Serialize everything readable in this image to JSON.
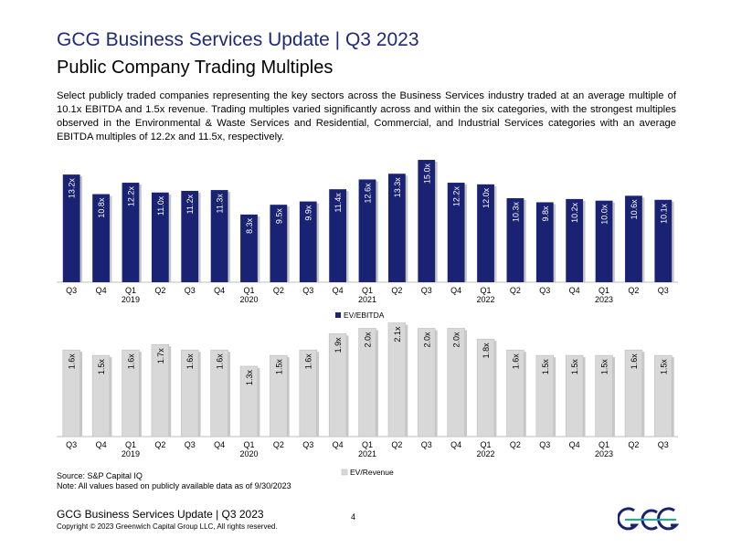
{
  "header": {
    "title": "GCG Business Services Update",
    "separator": "|",
    "period": "Q3 2023"
  },
  "subtitle": "Public Company Trading Multiples",
  "summary": "Select publicly traded companies representing the key sectors across the Business Services industry traded at an average multiple of 10.1x EBITDA and 1.5x revenue. Trading multiples varied significantly across and within the six categories, with the strongest multiples observed in the Environmental & Waste Services and Residential, Commercial, and Industrial Services categories with an average EBITDA multiples of 12.2x and 11.5x, respectively.",
  "colors": {
    "ebitda_bar": "#1a2373",
    "revenue_bar": "#d8d8d8",
    "title": "#1e2a78"
  },
  "chart_data": [
    {
      "type": "bar",
      "categories": [
        "Q3",
        "Q4",
        "Q1",
        "Q2",
        "Q3",
        "Q4",
        "Q1",
        "Q2",
        "Q3",
        "Q4",
        "Q1",
        "Q2",
        "Q3",
        "Q4",
        "Q1",
        "Q2",
        "Q3",
        "Q4",
        "Q1",
        "Q2",
        "Q3"
      ],
      "year_labels": [
        "",
        "",
        "2019",
        "",
        "",
        "",
        "2020",
        "",
        "",
        "",
        "2021",
        "",
        "",
        "",
        "2022",
        "",
        "",
        "",
        "2023",
        "",
        ""
      ],
      "series": [
        {
          "name": "EV/EBITDA",
          "values": [
            13.2,
            10.8,
            12.2,
            11.0,
            11.2,
            11.3,
            8.3,
            9.5,
            9.9,
            11.4,
            12.6,
            13.3,
            15.0,
            12.2,
            12.0,
            10.3,
            9.8,
            10.2,
            10.0,
            10.6,
            10.1
          ]
        }
      ],
      "labels": [
        "13.2x",
        "10.8x",
        "12.2x",
        "11.0x",
        "11.2x",
        "11.3x",
        "8.3x",
        "9.5x",
        "9.9x",
        "11.4x",
        "12.6x",
        "13.3x",
        "15.0x",
        "12.2x",
        "12.0x",
        "10.3x",
        "9.8x",
        "10.2x",
        "10.0x",
        "10.6x",
        "10.1x"
      ],
      "ylim": [
        0,
        15.9
      ],
      "legend": "bottom",
      "grid": false
    },
    {
      "type": "bar",
      "categories": [
        "Q3",
        "Q4",
        "Q1",
        "Q2",
        "Q3",
        "Q4",
        "Q1",
        "Q2",
        "Q3",
        "Q4",
        "Q1",
        "Q2",
        "Q3",
        "Q4",
        "Q1",
        "Q2",
        "Q3",
        "Q4",
        "Q1",
        "Q2",
        "Q3"
      ],
      "year_labels": [
        "",
        "",
        "2019",
        "",
        "",
        "",
        "2020",
        "",
        "",
        "",
        "2021",
        "",
        "",
        "",
        "2022",
        "",
        "",
        "",
        "2023",
        "",
        ""
      ],
      "series": [
        {
          "name": "EV/Revenue",
          "values": [
            1.6,
            1.5,
            1.6,
            1.7,
            1.6,
            1.6,
            1.3,
            1.5,
            1.6,
            1.9,
            2.0,
            2.1,
            2.0,
            2.0,
            1.8,
            1.6,
            1.5,
            1.5,
            1.5,
            1.6,
            1.5
          ]
        }
      ],
      "labels": [
        "1.6x",
        "1.5x",
        "1.6x",
        "1.7x",
        "1.6x",
        "1.6x",
        "1.3x",
        "1.5x",
        "1.6x",
        "1.9x",
        "2.0x",
        "2.1x",
        "2.0x",
        "2.0x",
        "1.8x",
        "1.6x",
        "1.5x",
        "1.5x",
        "1.5x",
        "1.6x",
        "1.5x"
      ],
      "ylim": [
        0,
        2.16
      ],
      "legend": "bottom",
      "grid": false
    }
  ],
  "source": {
    "line1": "Source: S&P Capital IQ",
    "line2": "Note: All values based on publicly available data as of 9/30/2023"
  },
  "footer": {
    "title": "GCG Business Services Update | Q3 2023",
    "copyright": "Copyright © 2023 Greenwich Capital Group LLC, All rights reserved.",
    "page": "4"
  },
  "logo": {
    "text": "GCG",
    "color": "#1a2373",
    "accent": "#2fa59a"
  }
}
